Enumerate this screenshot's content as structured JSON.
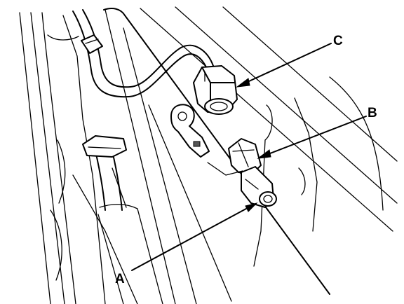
{
  "labels": {
    "a": "A",
    "b": "B",
    "c": "C"
  },
  "colors": {
    "line": "#000000",
    "background": "#ffffff"
  }
}
